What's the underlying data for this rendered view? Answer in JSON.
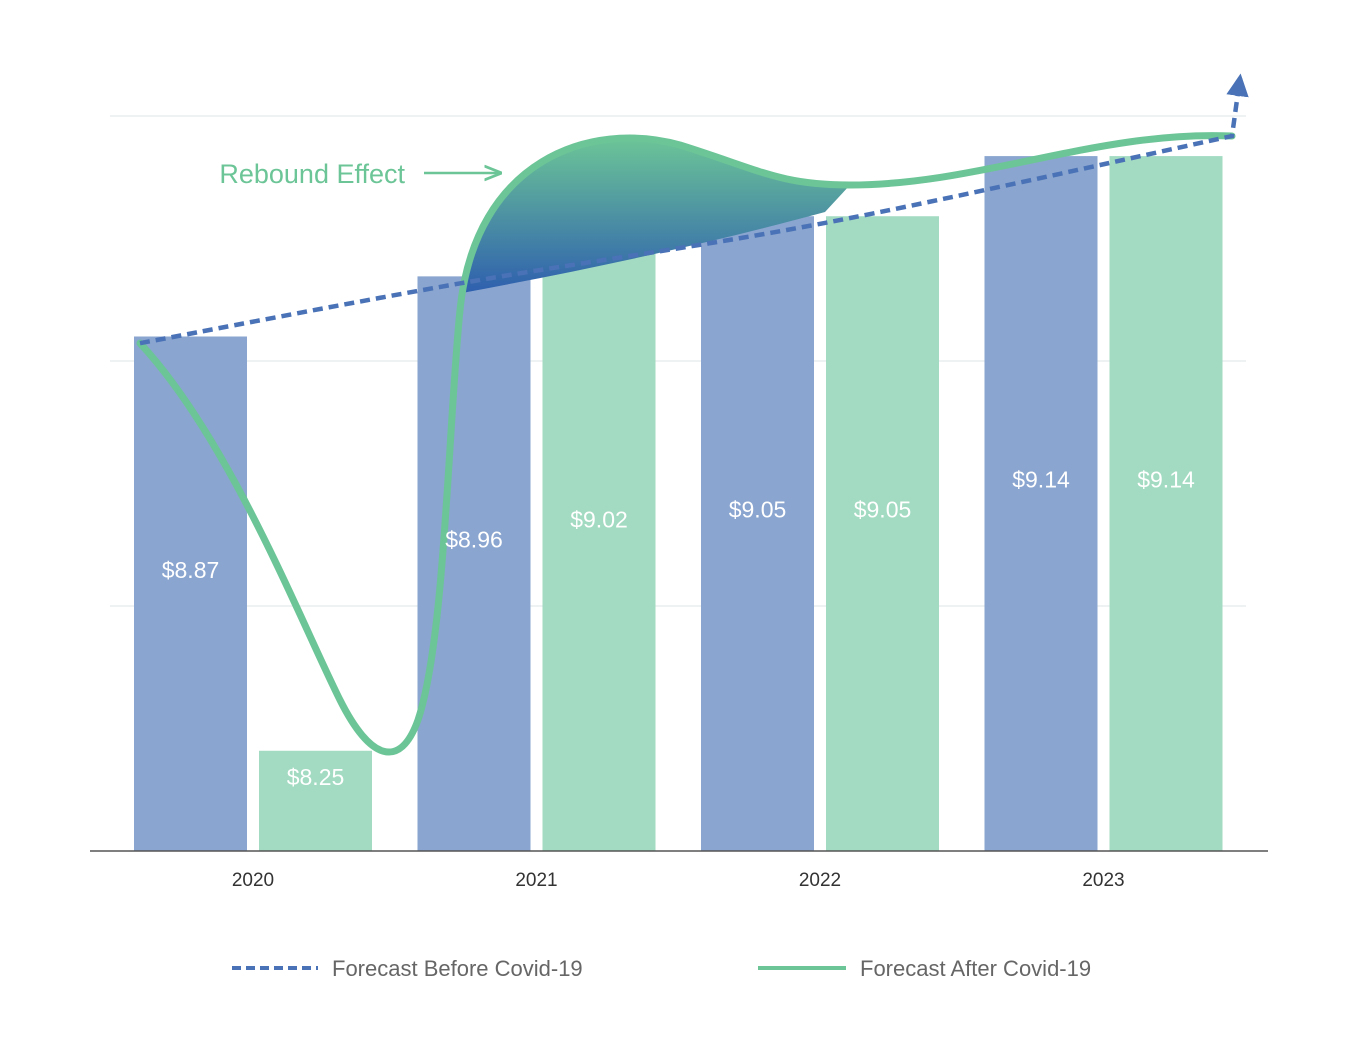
{
  "chart_data": {
    "type": "bar",
    "categories": [
      "2020",
      "2021",
      "2022",
      "2023"
    ],
    "series": [
      {
        "name": "Forecast Before Covid-19",
        "values": [
          8.87,
          8.96,
          9.05,
          9.14
        ]
      },
      {
        "name": "Forecast After Covid-19",
        "values": [
          8.25,
          9.02,
          9.05,
          9.14
        ]
      }
    ],
    "data_labels": {
      "before": [
        "$8.87",
        "$8.96",
        "$9.05",
        "$9.14"
      ],
      "after": [
        "$8.25",
        "$9.02",
        "$9.05",
        "$9.14"
      ]
    },
    "trend_before": [
      8.86,
      8.95,
      9.04,
      9.17
    ],
    "trend_after": [
      8.86,
      8.18,
      9.08,
      9.17
    ],
    "ylim": [
      8.1,
      9.2
    ],
    "grid": true,
    "legend": {
      "position": "bottom",
      "before_label": "Forecast Before Covid-19",
      "after_label": "Forecast After Covid-19"
    },
    "annotation": {
      "text": "Rebound Effect"
    },
    "colors": {
      "before_bar": "#8aa5cf",
      "after_bar": "#a3dbc2",
      "before_line": "#4a72b6",
      "after_line": "#6cc597",
      "grid": "#e4eaea",
      "axis": "#555555"
    }
  }
}
